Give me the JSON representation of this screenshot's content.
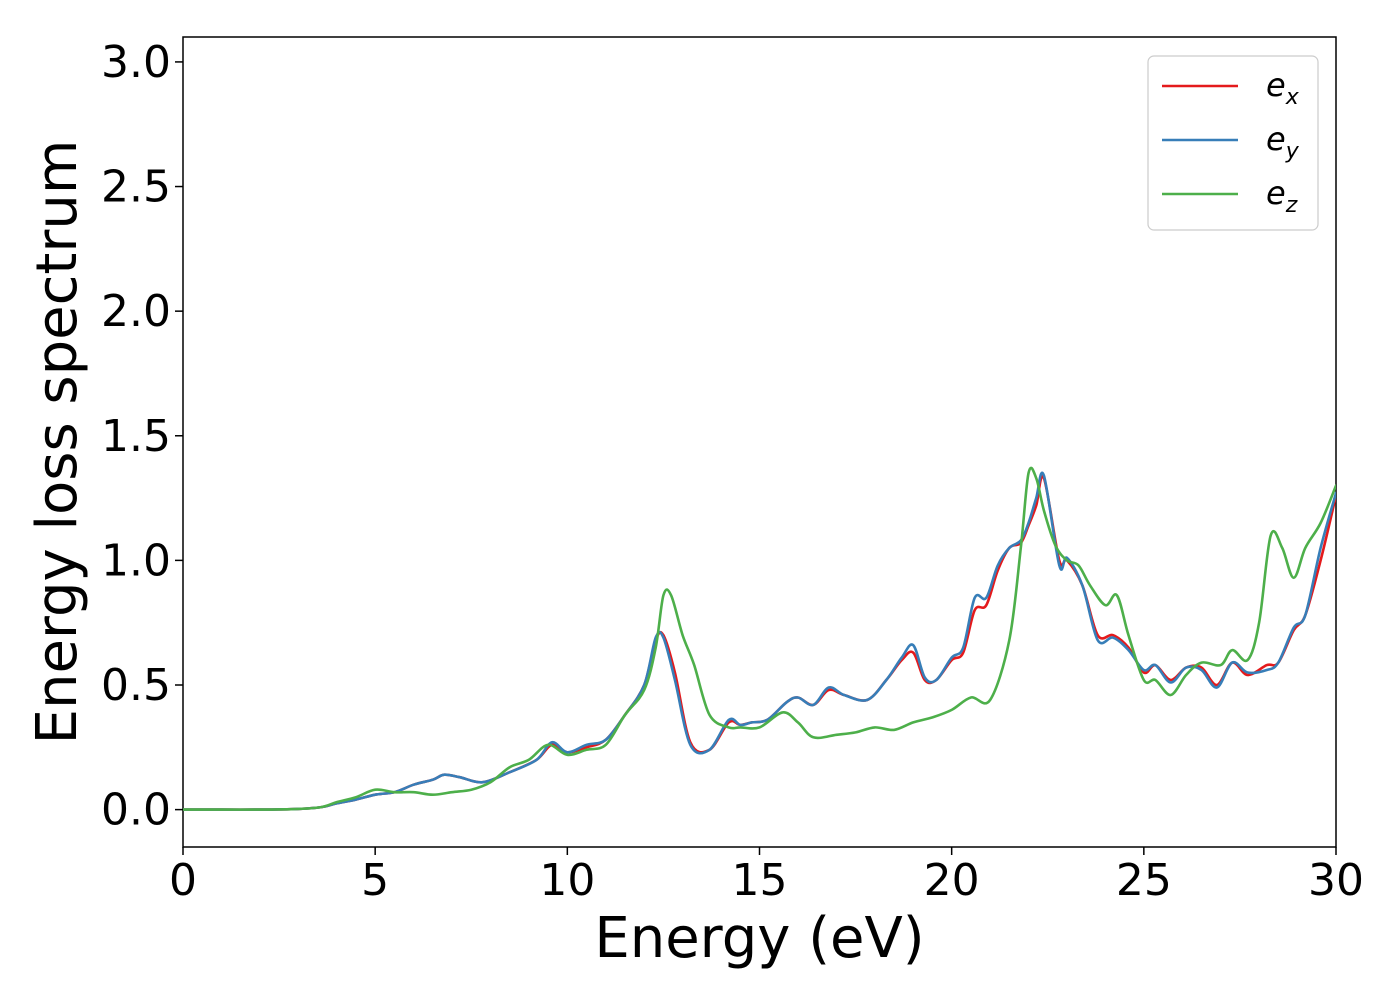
{
  "chart_data": {
    "type": "line",
    "title": "",
    "xlabel": "Energy (eV)",
    "ylabel": "Energy loss spectrum",
    "xlim": [
      0,
      30
    ],
    "ylim": [
      -0.15,
      3.1
    ],
    "xticks": [
      "0",
      "5",
      "10",
      "15",
      "20",
      "25",
      "30"
    ],
    "yticks": [
      "0.0",
      "0.5",
      "1.0",
      "1.5",
      "2.0",
      "2.5",
      "3.0"
    ],
    "grid": false,
    "legend_position": "top-right",
    "series": [
      {
        "name": "e_x",
        "legend_base": "e",
        "legend_sub": "x",
        "color": "#e41a1c",
        "x": [
          0,
          1,
          2,
          3,
          3.6,
          4,
          4.5,
          5,
          5.5,
          6,
          6.5,
          6.8,
          7.2,
          7.8,
          8.5,
          9.2,
          9.6,
          10,
          10.5,
          11,
          11.5,
          12,
          12.3,
          12.5,
          12.8,
          13.2,
          13.7,
          14.2,
          14.5,
          14.8,
          15.2,
          15.7,
          16,
          16.4,
          16.8,
          17.2,
          17.8,
          18.3,
          18.7,
          19,
          19.3,
          19.6,
          20,
          20.3,
          20.6,
          20.9,
          21.2,
          21.5,
          21.8,
          22,
          22.2,
          22.4,
          22.8,
          23,
          23.4,
          23.8,
          24.2,
          24.6,
          25,
          25.3,
          25.7,
          26.1,
          26.5,
          26.9,
          27.3,
          27.7,
          28.2,
          28.5,
          28.9,
          29.2,
          29.6,
          30
        ],
        "y": [
          0.0,
          0.0,
          0.0,
          0.003,
          0.01,
          0.025,
          0.04,
          0.06,
          0.07,
          0.1,
          0.12,
          0.14,
          0.13,
          0.11,
          0.15,
          0.2,
          0.26,
          0.23,
          0.25,
          0.28,
          0.38,
          0.5,
          0.68,
          0.7,
          0.55,
          0.27,
          0.24,
          0.35,
          0.34,
          0.35,
          0.36,
          0.43,
          0.45,
          0.42,
          0.48,
          0.46,
          0.44,
          0.52,
          0.6,
          0.63,
          0.52,
          0.52,
          0.6,
          0.63,
          0.8,
          0.82,
          0.96,
          1.05,
          1.07,
          1.14,
          1.22,
          1.33,
          1.0,
          1.0,
          0.9,
          0.7,
          0.7,
          0.65,
          0.55,
          0.58,
          0.52,
          0.57,
          0.57,
          0.5,
          0.59,
          0.54,
          0.58,
          0.59,
          0.72,
          0.78,
          1.0,
          1.26
        ]
      },
      {
        "name": "e_y",
        "legend_base": "e",
        "legend_sub": "y",
        "color": "#377eb8",
        "x": [
          0,
          1,
          2,
          3,
          3.6,
          4,
          4.5,
          5,
          5.5,
          6,
          6.5,
          6.8,
          7.2,
          7.8,
          8.5,
          9.2,
          9.6,
          10,
          10.5,
          11,
          11.5,
          12,
          12.3,
          12.5,
          12.8,
          13.2,
          13.7,
          14.2,
          14.5,
          14.8,
          15.2,
          15.7,
          16,
          16.4,
          16.8,
          17.2,
          17.8,
          18.3,
          18.7,
          19,
          19.3,
          19.6,
          20,
          20.3,
          20.6,
          20.9,
          21.2,
          21.5,
          21.8,
          22,
          22.2,
          22.4,
          22.8,
          23,
          23.4,
          23.8,
          24.2,
          24.6,
          25,
          25.3,
          25.7,
          26.1,
          26.5,
          26.9,
          27.3,
          27.7,
          28.2,
          28.5,
          28.9,
          29.2,
          29.6,
          30
        ],
        "y": [
          0.0,
          0.0,
          0.0,
          0.003,
          0.01,
          0.025,
          0.04,
          0.06,
          0.07,
          0.1,
          0.12,
          0.14,
          0.13,
          0.11,
          0.15,
          0.2,
          0.27,
          0.23,
          0.26,
          0.28,
          0.38,
          0.5,
          0.69,
          0.69,
          0.52,
          0.26,
          0.24,
          0.36,
          0.34,
          0.35,
          0.36,
          0.43,
          0.45,
          0.42,
          0.49,
          0.46,
          0.44,
          0.52,
          0.61,
          0.66,
          0.53,
          0.52,
          0.61,
          0.65,
          0.85,
          0.85,
          0.98,
          1.05,
          1.08,
          1.15,
          1.25,
          1.34,
          0.98,
          1.01,
          0.9,
          0.68,
          0.69,
          0.64,
          0.56,
          0.58,
          0.51,
          0.57,
          0.56,
          0.49,
          0.59,
          0.55,
          0.56,
          0.59,
          0.73,
          0.78,
          1.05,
          1.27
        ]
      },
      {
        "name": "e_z",
        "legend_base": "e",
        "legend_sub": "z",
        "color": "#4daf4a",
        "x": [
          0,
          1,
          2,
          3,
          3.6,
          4,
          4.5,
          5,
          5.5,
          6,
          6.5,
          7,
          7.5,
          8,
          8.5,
          9,
          9.5,
          10,
          10.5,
          11,
          11.5,
          12,
          12.3,
          12.5,
          12.7,
          13,
          13.3,
          13.7,
          14.2,
          14.5,
          15,
          15.6,
          16,
          16.4,
          17,
          17.5,
          18,
          18.5,
          19,
          19.5,
          20,
          20.5,
          21,
          21.5,
          21.8,
          22,
          22.2,
          22.4,
          22.7,
          23,
          23.3,
          23.6,
          24,
          24.3,
          24.6,
          25,
          25.3,
          25.7,
          26.1,
          26.5,
          27,
          27.3,
          27.7,
          28,
          28.3,
          28.6,
          28.9,
          29.2,
          29.6,
          30
        ],
        "y": [
          0.0,
          0.0,
          0.0,
          0.003,
          0.01,
          0.03,
          0.05,
          0.08,
          0.07,
          0.07,
          0.06,
          0.07,
          0.08,
          0.11,
          0.17,
          0.2,
          0.26,
          0.22,
          0.24,
          0.26,
          0.38,
          0.48,
          0.65,
          0.86,
          0.86,
          0.7,
          0.58,
          0.38,
          0.33,
          0.33,
          0.33,
          0.39,
          0.35,
          0.29,
          0.3,
          0.31,
          0.33,
          0.32,
          0.35,
          0.37,
          0.4,
          0.45,
          0.44,
          0.68,
          1.05,
          1.35,
          1.33,
          1.2,
          1.06,
          1.0,
          0.98,
          0.9,
          0.82,
          0.86,
          0.7,
          0.52,
          0.52,
          0.46,
          0.54,
          0.59,
          0.58,
          0.64,
          0.6,
          0.75,
          1.1,
          1.05,
          0.93,
          1.05,
          1.15,
          1.3
        ]
      }
    ]
  }
}
